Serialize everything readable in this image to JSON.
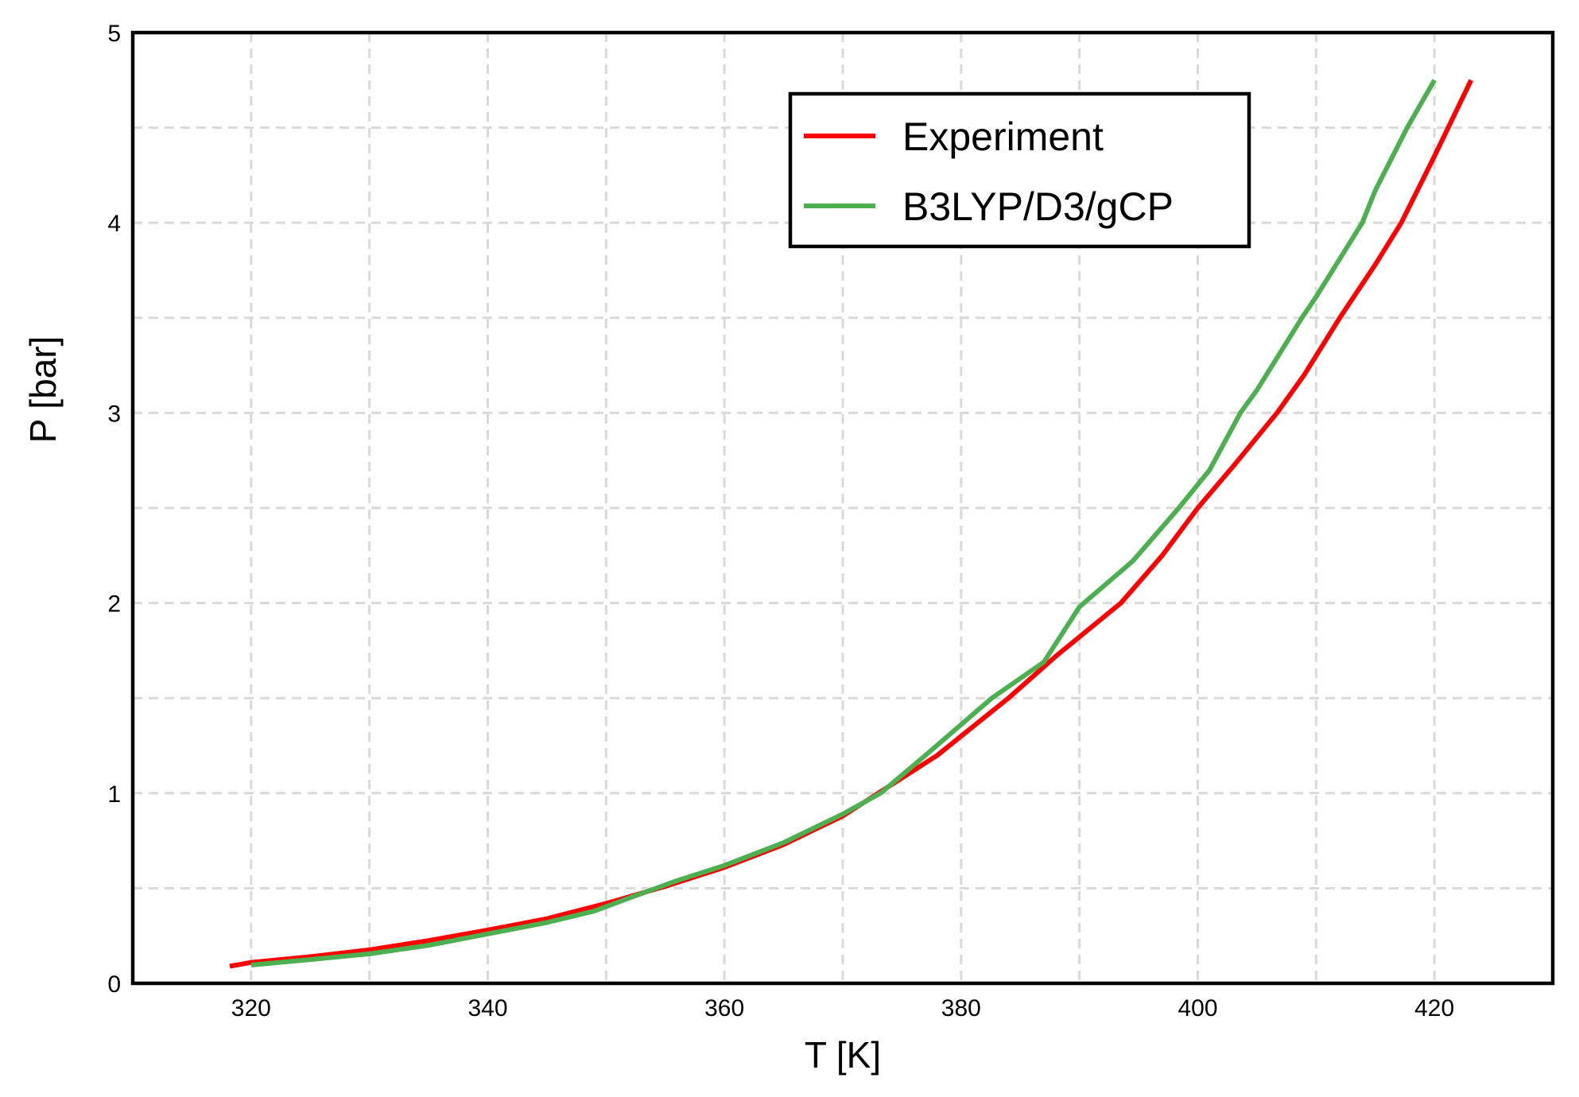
{
  "chart_data": {
    "type": "line",
    "title": "",
    "xlabel": "T [K]",
    "ylabel": "P [bar]",
    "xlim": [
      310,
      430
    ],
    "ylim": [
      0,
      5
    ],
    "grid": true,
    "grid_style": "dashed",
    "xticks": [
      320,
      340,
      360,
      380,
      400,
      420
    ],
    "xtick_labels": [
      "320",
      "340",
      "360",
      "380",
      "400",
      "420"
    ],
    "x_gridlines": [
      320,
      330,
      340,
      350,
      360,
      370,
      380,
      390,
      400,
      410,
      420
    ],
    "yticks": [
      0,
      1,
      2,
      3,
      4,
      5
    ],
    "ytick_labels": [
      "0",
      "1",
      "2",
      "3",
      "4",
      "5"
    ],
    "y_gridlines": [
      0.5,
      1,
      1.5,
      2,
      2.5,
      3,
      3.5,
      4,
      4.5
    ],
    "legend_position": "upper center-right",
    "series": [
      {
        "name": "Experiment",
        "color": "#ff0000",
        "x": [
          318.2,
          320,
          325,
          330,
          335,
          340,
          345,
          350,
          355,
          360,
          365,
          370,
          373,
          378,
          384,
          388,
          393.5,
          397,
          400,
          403,
          406.7,
          409,
          412,
          415,
          417.2,
          420,
          423.1
        ],
        "y": [
          0.09,
          0.11,
          0.14,
          0.176,
          0.225,
          0.28,
          0.34,
          0.42,
          0.51,
          0.61,
          0.73,
          0.88,
          1.0,
          1.2,
          1.5,
          1.72,
          2.0,
          2.25,
          2.5,
          2.72,
          3.0,
          3.2,
          3.5,
          3.78,
          4.0,
          4.35,
          4.75
        ]
      },
      {
        "name": "B3LYP/D3/gCP",
        "color": "#4caf50",
        "x": [
          320,
          325,
          330,
          335,
          340,
          345,
          349,
          352,
          356,
          360,
          365,
          370,
          373.2,
          377,
          382.6,
          387,
          390,
          394.5,
          398.4,
          401,
          403.6,
          405,
          408.8,
          410,
          413.9,
          415,
          417.7,
          420
        ],
        "y": [
          0.096,
          0.125,
          0.155,
          0.2,
          0.26,
          0.32,
          0.38,
          0.45,
          0.54,
          0.62,
          0.74,
          0.89,
          1.0,
          1.2,
          1.5,
          1.69,
          1.98,
          2.22,
          2.5,
          2.7,
          3.0,
          3.12,
          3.5,
          3.61,
          4.0,
          4.17,
          4.5,
          4.75
        ]
      }
    ]
  }
}
